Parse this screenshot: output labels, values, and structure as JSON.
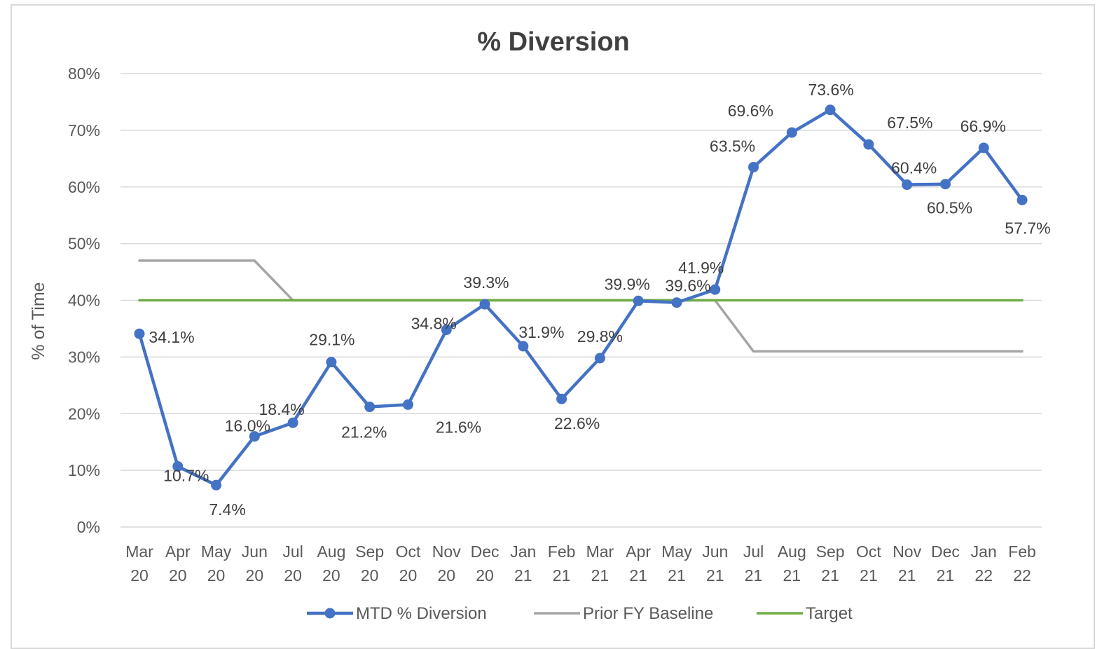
{
  "chart_data": {
    "type": "line",
    "title": "% Diversion",
    "xlabel": "",
    "ylabel": "% of Time",
    "ylim": [
      0,
      80
    ],
    "yticks": [
      "0%",
      "10%",
      "20%",
      "30%",
      "40%",
      "50%",
      "60%",
      "70%",
      "80%"
    ],
    "grid": true,
    "legend_position": "bottom",
    "categories": [
      [
        "Mar",
        "20"
      ],
      [
        "Apr",
        "20"
      ],
      [
        "May",
        "20"
      ],
      [
        "Jun",
        "20"
      ],
      [
        "Jul",
        "20"
      ],
      [
        "Aug",
        "20"
      ],
      [
        "Sep",
        "20"
      ],
      [
        "Oct",
        "20"
      ],
      [
        "Nov",
        "20"
      ],
      [
        "Dec",
        "20"
      ],
      [
        "Jan",
        "21"
      ],
      [
        "Feb",
        "21"
      ],
      [
        "Mar",
        "21"
      ],
      [
        "Apr",
        "21"
      ],
      [
        "May",
        "21"
      ],
      [
        "Jun",
        "21"
      ],
      [
        "Jul",
        "21"
      ],
      [
        "Aug",
        "21"
      ],
      [
        "Sep",
        "21"
      ],
      [
        "Oct",
        "21"
      ],
      [
        "Nov",
        "21"
      ],
      [
        "Dec",
        "21"
      ],
      [
        "Jan",
        "22"
      ],
      [
        "Feb",
        "22"
      ]
    ],
    "series": [
      {
        "name": "MTD % Diversion",
        "color": "#4472c4",
        "markers": true,
        "values": [
          34.1,
          10.7,
          7.4,
          16.0,
          18.4,
          29.1,
          21.2,
          21.6,
          34.8,
          39.3,
          31.9,
          22.6,
          29.8,
          39.9,
          39.6,
          41.9,
          63.5,
          69.6,
          73.6,
          67.5,
          60.4,
          60.5,
          66.9,
          57.7
        ],
        "labels": [
          "34.1%",
          "10.7%",
          "7.4%",
          "16.0%",
          "18.4%",
          "29.1%",
          "21.2%",
          "21.6%",
          "34.8%",
          "39.3%",
          "31.9%",
          "22.6%",
          "29.8%",
          "39.9%",
          "39.6%",
          "41.9%",
          "63.5%",
          "69.6%",
          "73.6%",
          "67.5%",
          "60.4%",
          "60.5%",
          "66.9%",
          "57.7%"
        ]
      },
      {
        "name": "Prior FY Baseline",
        "color": "#a5a5a5",
        "markers": false,
        "values": [
          47,
          47,
          47,
          47,
          40,
          40,
          40,
          40,
          40,
          40,
          40,
          40,
          40,
          40,
          40,
          40,
          31,
          31,
          31,
          31,
          31,
          31,
          31,
          31
        ]
      },
      {
        "name": "Target",
        "color": "#70ad47",
        "markers": false,
        "values": [
          40,
          40,
          40,
          40,
          40,
          40,
          40,
          40,
          40,
          40,
          40,
          40,
          40,
          40,
          40,
          40,
          40,
          40,
          40,
          40,
          40,
          40,
          40,
          40
        ]
      }
    ]
  }
}
